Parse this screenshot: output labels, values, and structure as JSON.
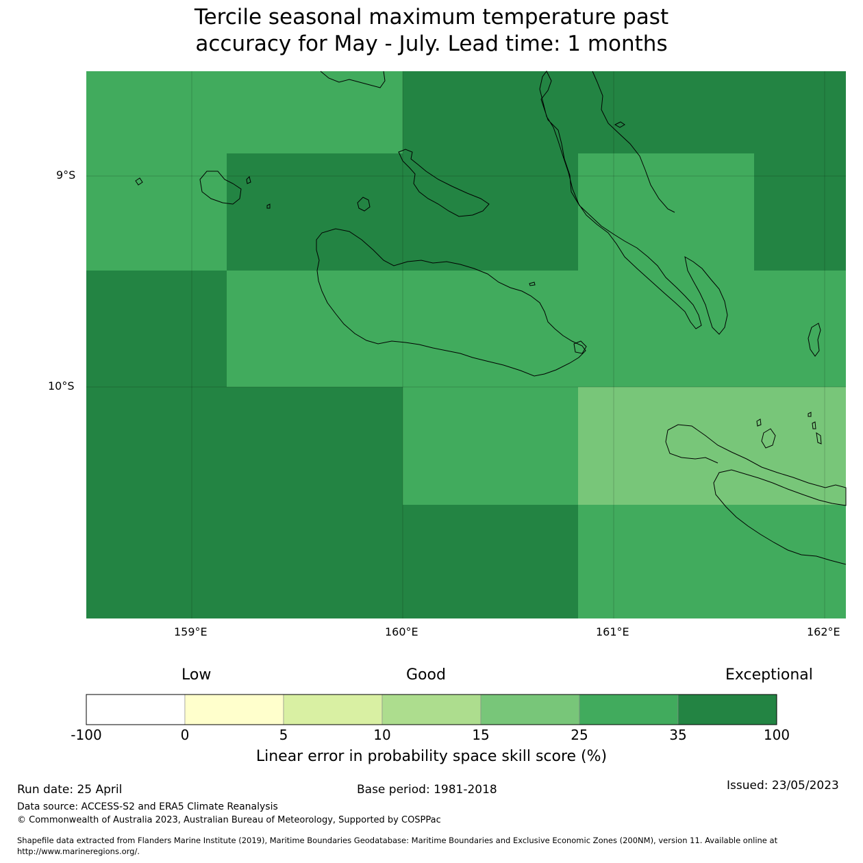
{
  "title_line1": "Tercile seasonal maximum temperature past",
  "title_line2": "accuracy for May - July. Lead time: 1 months",
  "map": {
    "lon_labels": [
      "159°E",
      "160°E",
      "161°E",
      "162°E"
    ],
    "lat_labels": [
      "9°S",
      "10°S"
    ],
    "cells": [
      {
        "row": 0,
        "col": 0,
        "level": 5
      },
      {
        "row": 0,
        "col": 1,
        "level": 5
      },
      {
        "row": 0,
        "col": 2,
        "level": 6
      },
      {
        "row": 0,
        "col": 3,
        "level": 6
      },
      {
        "row": 0,
        "col": 4,
        "level": 6
      },
      {
        "row": 1,
        "col": 0,
        "level": 5
      },
      {
        "row": 1,
        "col": 1,
        "level": 6
      },
      {
        "row": 1,
        "col": 2,
        "level": 6
      },
      {
        "row": 1,
        "col": 3,
        "level": 5
      },
      {
        "row": 1,
        "col": 4,
        "level": 6
      },
      {
        "row": 2,
        "col": 0,
        "level": 6
      },
      {
        "row": 2,
        "col": 1,
        "level": 5
      },
      {
        "row": 2,
        "col": 2,
        "level": 5
      },
      {
        "row": 2,
        "col": 3,
        "level": 5
      },
      {
        "row": 2,
        "col": 4,
        "level": 5
      },
      {
        "row": 3,
        "col": 0,
        "level": 6
      },
      {
        "row": 3,
        "col": 1,
        "level": 6
      },
      {
        "row": 3,
        "col": 2,
        "level": 5
      },
      {
        "row": 3,
        "col": 3,
        "level": 4
      },
      {
        "row": 3,
        "col": 4,
        "level": 4
      },
      {
        "row": 4,
        "col": 0,
        "level": 6
      },
      {
        "row": 4,
        "col": 1,
        "level": 6
      },
      {
        "row": 4,
        "col": 2,
        "level": 6
      },
      {
        "row": 4,
        "col": 3,
        "level": 5
      },
      {
        "row": 4,
        "col": 4,
        "level": 5
      }
    ]
  },
  "colorbar": {
    "low_label": "Low",
    "good_label": "Good",
    "exceptional_label": "Exceptional",
    "ticks": [
      "-100",
      "0",
      "5",
      "10",
      "15",
      "25",
      "35",
      "100"
    ],
    "colors": [
      "#ffffff",
      "#ffffcc",
      "#d9f0a3",
      "#addd8e",
      "#78c679",
      "#41ab5d",
      "#238443"
    ],
    "caption": "Linear error in probability space skill score (%)"
  },
  "footer": {
    "run_date": "Run date: 25 April",
    "base_period": "Base period: 1981-2018",
    "issued": "Issued: 23/05/2023",
    "data_source": "Data source: ACCESS-S2 and ERA5 Climate Reanalysis",
    "copyright": "© Commonwealth of Australia 2023, Australian Bureau of Meteorology, Supported by COSPPac",
    "shapefile_line1": "Shapefile data extracted from Flanders Marine Institute (2019), Maritime Boundaries Geodatabase: Maritime Boundaries and Exclusive Economic Zones (200NM), version 11. Available online at",
    "shapefile_line2": "http://www.marineregions.org/."
  }
}
